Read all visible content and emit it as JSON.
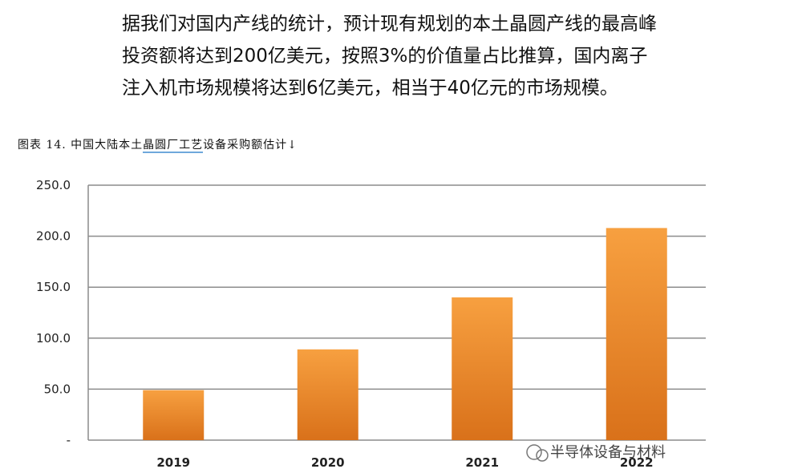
{
  "paragraph": {
    "lines": [
      "据我们对国内产线的统计，预计现有规划的本土晶圆产线的最高峰",
      "投资额将达到200亿美元，按照3%的价值量占比推算，国内离子",
      "注入机市场规模将达到6亿美元，相当于40亿元的市场规模。"
    ]
  },
  "caption": {
    "prefix": "图表 14. 中国大陆本土",
    "underlined": "晶圆厂工艺",
    "suffix": "设备采购额估计",
    "mark": "↓"
  },
  "watermark": "半导体设备与材料",
  "colors": {
    "bar_top": "#f7a040",
    "bar_bottom": "#d9711a",
    "grid": "#8c8c8c"
  },
  "chart_data": {
    "type": "bar",
    "categories": [
      "2019",
      "2020",
      "2021",
      "2022"
    ],
    "values": [
      49,
      89,
      140,
      208
    ],
    "ylim": [
      0,
      250
    ],
    "yticks": [
      "-",
      "50.0",
      "100.0",
      "150.0",
      "200.0",
      "250.0"
    ],
    "grid": true
  }
}
